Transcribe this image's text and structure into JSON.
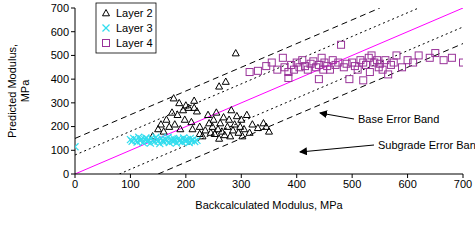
{
  "chart_data": {
    "type": "scatter",
    "x_label": "Backcalculated Modulus, MPa",
    "y_label": "Predicted Modulus, MPa",
    "xlim": [
      0,
      700
    ],
    "xticks": [
      0,
      100,
      200,
      300,
      400,
      500,
      600,
      700
    ],
    "ylim": [
      0,
      700
    ],
    "yticks": [
      0,
      100,
      200,
      300,
      400,
      500,
      600,
      700
    ],
    "grid": false,
    "legend": "upper left",
    "series": [
      {
        "name": "Layer 2",
        "type": "scatter",
        "marker": "triangle",
        "color": "#000000",
        "x": [
          150,
          155,
          160,
          165,
          170,
          175,
          178,
          180,
          185,
          188,
          190,
          195,
          198,
          200,
          205,
          210,
          212,
          215,
          220,
          225,
          230,
          235,
          240,
          242,
          245,
          248,
          250,
          252,
          255,
          258,
          260,
          262,
          265,
          268,
          270,
          272,
          275,
          278,
          280,
          282,
          285,
          288,
          290,
          292,
          295,
          298,
          300,
          302,
          305,
          310,
          315,
          320,
          330,
          340,
          345,
          350,
          260,
          225,
          215,
          140
        ],
        "values": [
          190,
          210,
          180,
          230,
          200,
          260,
          320,
          210,
          250,
          300,
          190,
          270,
          230,
          290,
          280,
          220,
          190,
          280,
          265,
          200,
          160,
          185,
          250,
          215,
          175,
          200,
          230,
          170,
          260,
          190,
          370,
          215,
          180,
          240,
          165,
          390,
          200,
          230,
          160,
          270,
          185,
          210,
          510,
          245,
          175,
          200,
          230,
          160,
          190,
          250,
          175,
          210,
          195,
          215,
          200,
          180,
          150,
          170,
          310,
          160
        ]
      },
      {
        "name": "Layer 3",
        "type": "scatter",
        "marker": "x",
        "color": "#33ddee",
        "x": [
          100,
          103,
          106,
          110,
          112,
          115,
          118,
          120,
          123,
          126,
          128,
          130,
          133,
          136,
          138,
          140,
          143,
          146,
          148,
          150,
          153,
          156,
          158,
          160,
          163,
          166,
          168,
          170,
          173,
          176,
          178,
          180,
          183,
          186,
          188,
          190,
          193,
          196,
          198,
          200,
          203,
          206,
          208,
          210,
          213,
          216,
          220,
          0
        ],
        "values": [
          145,
          138,
          150,
          142,
          135,
          155,
          140,
          148,
          132,
          145,
          152,
          138,
          144,
          130,
          150,
          141,
          136,
          155,
          145,
          139,
          128,
          150,
          142,
          135,
          147,
          140,
          155,
          133,
          145,
          138,
          150,
          142,
          130,
          148,
          139,
          145,
          135,
          152,
          141,
          138,
          146,
          133,
          150,
          140,
          144,
          137,
          142,
          115
        ]
      },
      {
        "name": "Layer 4",
        "type": "scatter",
        "marker": "square",
        "color": "#993399",
        "x": [
          315,
          330,
          345,
          355,
          365,
          375,
          378,
          385,
          390,
          395,
          400,
          405,
          410,
          415,
          420,
          425,
          430,
          435,
          440,
          445,
          448,
          450,
          455,
          460,
          465,
          470,
          475,
          480,
          485,
          490,
          495,
          500,
          505,
          510,
          515,
          520,
          525,
          530,
          532,
          535,
          540,
          545,
          548,
          550,
          555,
          560,
          565,
          570,
          575,
          580,
          590,
          600,
          610,
          620,
          640,
          650,
          665,
          680,
          700,
          385,
          440,
          520
        ],
        "values": [
          430,
          435,
          455,
          470,
          440,
          490,
          450,
          430,
          460,
          440,
          470,
          450,
          480,
          455,
          440,
          465,
          475,
          450,
          460,
          490,
          440,
          470,
          455,
          440,
          480,
          460,
          470,
          545,
          450,
          465,
          400,
          470,
          455,
          440,
          480,
          470,
          460,
          490,
          430,
          500,
          470,
          480,
          450,
          465,
          440,
          480,
          420,
          460,
          470,
          500,
          450,
          480,
          470,
          500,
          490,
          510,
          480,
          490,
          470,
          405,
          400,
          395
        ]
      },
      {
        "type": "line",
        "line_style": "solid",
        "color": "#ff00ff",
        "x": [
          0,
          700
        ],
        "values": [
          0,
          700
        ]
      },
      {
        "name": "Base Error Band",
        "type": "line",
        "line_style": "dashed",
        "color": "#000000",
        "x": [
          0,
          550
        ],
        "values": [
          150,
          700
        ]
      },
      {
        "name": "Base Error Band",
        "type": "line",
        "line_style": "dashed",
        "color": "#000000",
        "x": [
          150,
          700
        ],
        "values": [
          0,
          550
        ]
      },
      {
        "name": "Subgrade Error Band",
        "type": "line",
        "line_style": "dotted",
        "color": "#000000",
        "x": [
          0,
          620
        ],
        "values": [
          80,
          700
        ]
      },
      {
        "name": "Subgrade Error Band",
        "type": "line",
        "line_style": "dotted",
        "color": "#000000",
        "x": [
          80,
          700
        ],
        "values": [
          0,
          620
        ]
      }
    ],
    "annotations": [
      {
        "text": "Base Error Band"
      },
      {
        "text": "Subgrade Error Band"
      }
    ]
  }
}
